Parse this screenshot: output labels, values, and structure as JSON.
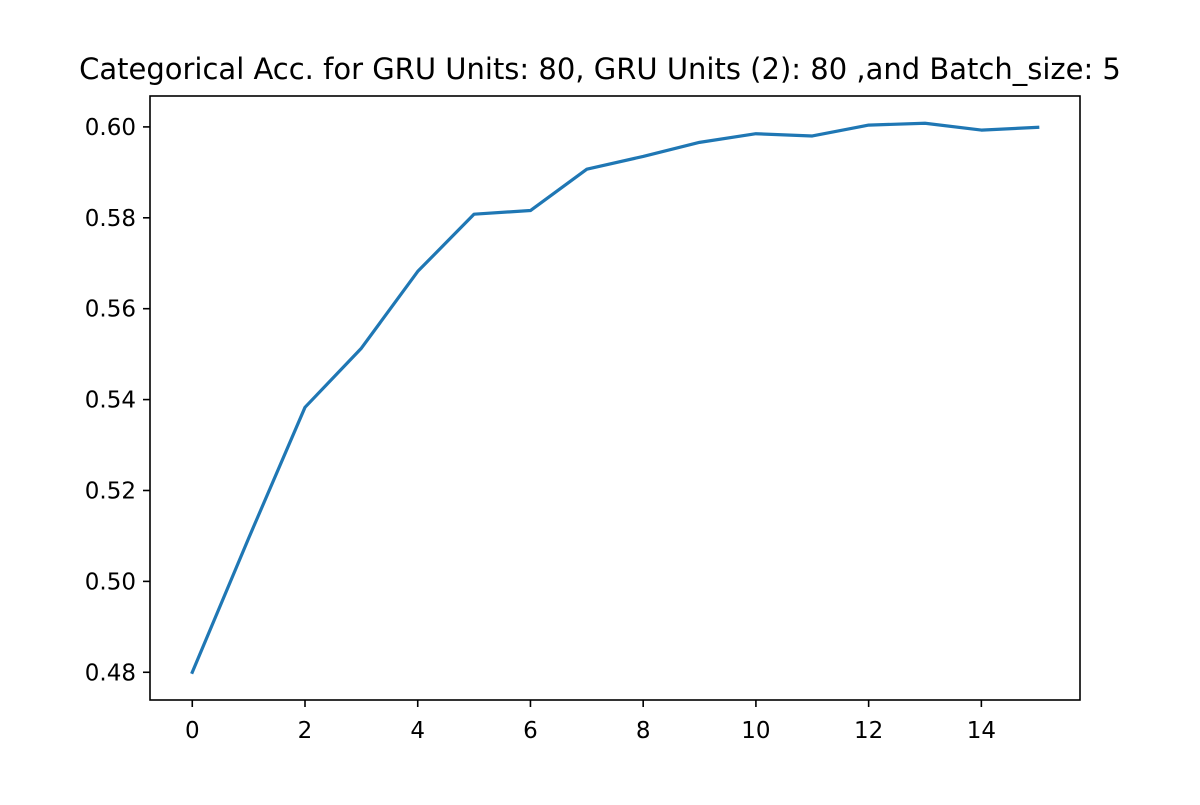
{
  "chart_data": {
    "type": "line",
    "title": "Categorical Acc. for GRU Units: 80, GRU Units (2): 80 ,and Batch_size: 5",
    "xlabel": "",
    "ylabel": "",
    "x": [
      0,
      1,
      2,
      3,
      4,
      5,
      6,
      7,
      8,
      9,
      10,
      11,
      12,
      13,
      14,
      15
    ],
    "series": [
      {
        "values": [
          0.48,
          0.5095,
          0.5383,
          0.5513,
          0.5682,
          0.5808,
          0.5816,
          0.5907,
          0.5935,
          0.5966,
          0.5985,
          0.598,
          0.6004,
          0.6008,
          0.5993,
          0.5999
        ],
        "color": "#1f77b4"
      }
    ],
    "xlim": [
      -0.75,
      15.75
    ],
    "ylim": [
      0.4739,
      0.6068
    ],
    "xticks": [
      0,
      2,
      4,
      6,
      8,
      10,
      12,
      14
    ],
    "xtick_labels": [
      "0",
      "2",
      "4",
      "6",
      "8",
      "10",
      "12",
      "14"
    ],
    "yticks": [
      0.48,
      0.5,
      0.52,
      0.54,
      0.56,
      0.58,
      0.6
    ],
    "ytick_labels": [
      "0.48",
      "0.50",
      "0.52",
      "0.54",
      "0.56",
      "0.58",
      "0.60"
    ],
    "grid": false,
    "legend": "none"
  }
}
